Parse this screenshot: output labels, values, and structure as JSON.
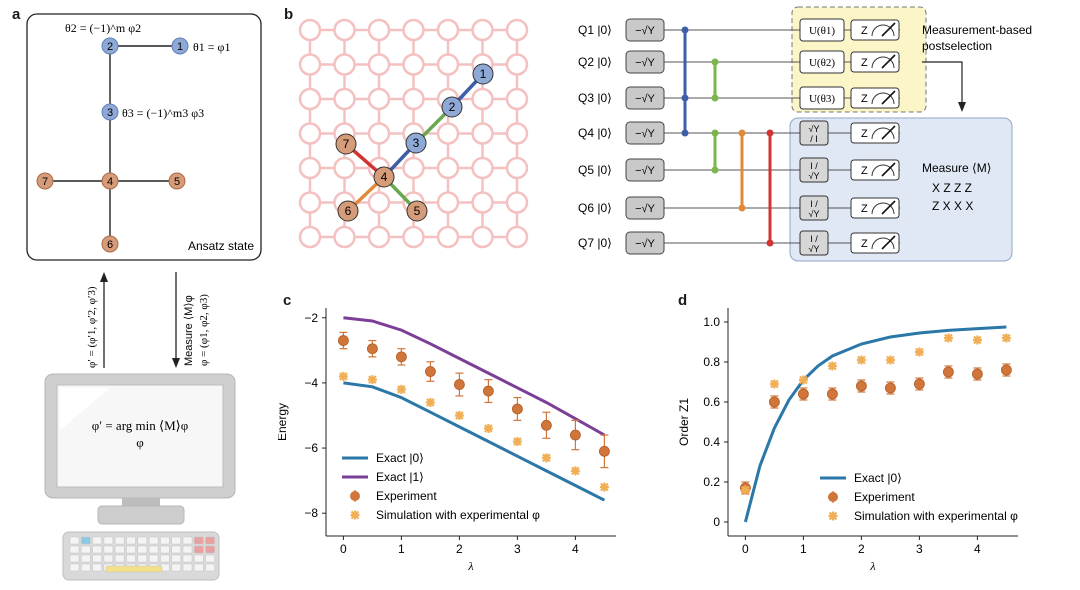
{
  "panels": {
    "a": "a",
    "b": "b",
    "c": "c",
    "d": "d"
  },
  "panel_a": {
    "theta2": "θ2 = (−1)^m φ2",
    "theta1": "θ1 = φ1",
    "theta3": "θ3 = (−1)^m3 φ3",
    "nodes": [
      "1",
      "2",
      "3",
      "4",
      "5",
      "6",
      "7"
    ],
    "box_label": "Ansatz state",
    "arrow_up_label": "φ′ = (φ′1, φ′2, φ′3)",
    "arrow_down_label1": "Measure ⟨M⟩φ",
    "arrow_down_label2": "φ = (φ1, φ2, φ3)",
    "screen_line1": "φ′ = arg min ⟨M⟩φ",
    "screen_line2": "φ"
  },
  "panel_b": {
    "lattice_nodes": [
      "1",
      "2",
      "3",
      "4",
      "5",
      "6",
      "7"
    ],
    "qubits": [
      "Q1 |0⟩",
      "Q2 |0⟩",
      "Q3 |0⟩",
      "Q4 |0⟩",
      "Q5 |0⟩",
      "Q6 |0⟩",
      "Q7 |0⟩"
    ],
    "init_gate": "−√Y",
    "u_gates": [
      "U(θ1)",
      "U(θ2)",
      "U(θ3)"
    ],
    "basis_gates": [
      [
        "√Y",
        "/ I"
      ],
      [
        "I /",
        "√Y"
      ],
      [
        "I /",
        "√Y"
      ],
      [
        "I /",
        "√Y"
      ]
    ],
    "meas_gate": "Z",
    "postselection_label": [
      "Measurement-based",
      "postselection"
    ],
    "measure_label": "Measure ⟨M⟩",
    "operators": [
      "X Z Z Z",
      "Z X X X"
    ]
  },
  "chart_data": [
    {
      "type": "line",
      "panel": "c",
      "title": "",
      "xlabel": "λ",
      "ylabel": "Energy",
      "xlim": [
        -0.3,
        4.7
      ],
      "ylim": [
        -8.7,
        -1.7
      ],
      "xticks": [
        "0",
        "1",
        "2",
        "3",
        "4"
      ],
      "yticks": [
        "−2",
        "−4",
        "−6",
        "−8"
      ],
      "series": [
        {
          "name": "Exact |0⟩",
          "color": "#2a77a8",
          "x": [
            0,
            0.5,
            1,
            1.5,
            2,
            2.5,
            3,
            3.5,
            4,
            4.5
          ],
          "y": [
            -4.0,
            -4.12,
            -4.45,
            -4.9,
            -5.35,
            -5.8,
            -6.25,
            -6.7,
            -7.15,
            -7.6
          ]
        },
        {
          "name": "Exact |1⟩",
          "color": "#7b3f98",
          "x": [
            0,
            0.5,
            1,
            1.5,
            2,
            2.5,
            3,
            3.5,
            4,
            4.5
          ],
          "y": [
            -2.0,
            -2.1,
            -2.38,
            -2.8,
            -3.25,
            -3.7,
            -4.15,
            -4.6,
            -5.1,
            -5.6
          ]
        },
        {
          "name": "Experiment",
          "color": "#d0763a",
          "x": [
            0,
            0.5,
            1,
            1.5,
            2,
            2.5,
            3,
            3.5,
            4,
            4.5
          ],
          "y": [
            -2.7,
            -2.95,
            -3.2,
            -3.65,
            -4.05,
            -4.25,
            -4.8,
            -5.3,
            -5.6,
            -6.1
          ],
          "err": [
            0.25,
            0.25,
            0.25,
            0.3,
            0.35,
            0.35,
            0.35,
            0.4,
            0.45,
            0.5
          ]
        },
        {
          "name": "Simulation with experimental φ",
          "color": "#f0ae55",
          "x": [
            0,
            0.5,
            1,
            1.5,
            2,
            2.5,
            3,
            3.5,
            4,
            4.5
          ],
          "y": [
            -3.8,
            -3.9,
            -4.2,
            -4.6,
            -5.0,
            -5.4,
            -5.8,
            -6.3,
            -6.7,
            -7.2
          ]
        }
      ]
    },
    {
      "type": "line",
      "panel": "d",
      "title": "",
      "xlabel": "λ",
      "ylabel": "Order Z1",
      "xlim": [
        -0.3,
        4.7
      ],
      "ylim": [
        -0.07,
        1.07
      ],
      "xticks": [
        "0",
        "1",
        "2",
        "3",
        "4"
      ],
      "yticks": [
        "0",
        "0.2",
        "0.4",
        "0.6",
        "0.8",
        "1.0"
      ],
      "series": [
        {
          "name": "Exact |0⟩",
          "color": "#2a77a8",
          "x": [
            0,
            0.25,
            0.5,
            0.75,
            1,
            1.25,
            1.5,
            2,
            2.5,
            3,
            3.5,
            4,
            4.5
          ],
          "y": [
            0.0,
            0.28,
            0.47,
            0.61,
            0.71,
            0.78,
            0.83,
            0.89,
            0.925,
            0.945,
            0.958,
            0.967,
            0.975
          ]
        },
        {
          "name": "Experiment",
          "color": "#d0763a",
          "x": [
            0,
            0.5,
            1,
            1.5,
            2,
            2.5,
            3,
            3.5,
            4,
            4.5
          ],
          "y": [
            0.17,
            0.6,
            0.64,
            0.64,
            0.68,
            0.67,
            0.69,
            0.75,
            0.74,
            0.76
          ],
          "err": [
            0.03,
            0.03,
            0.03,
            0.03,
            0.03,
            0.03,
            0.03,
            0.03,
            0.03,
            0.03
          ]
        },
        {
          "name": "Simulation with experimental φ",
          "color": "#f0ae55",
          "x": [
            0,
            0.5,
            1,
            1.5,
            2,
            2.5,
            3,
            3.5,
            4,
            4.5
          ],
          "y": [
            0.16,
            0.69,
            0.71,
            0.78,
            0.81,
            0.81,
            0.85,
            0.92,
            0.91,
            0.92
          ]
        }
      ]
    }
  ]
}
